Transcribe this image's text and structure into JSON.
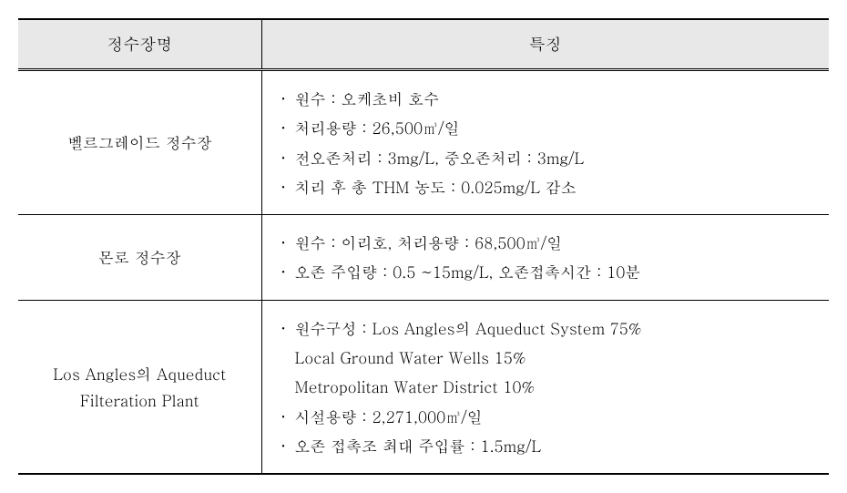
{
  "table": {
    "header_bg": "#e8e8e8",
    "border_color": "#000000",
    "columns": [
      {
        "label": "정수장명"
      },
      {
        "label": "특징"
      }
    ],
    "rows": [
      {
        "name_lines": [
          "벨르그레이드 정수장"
        ],
        "features": [
          {
            "bullet": true,
            "text": "원수 : 오케초비 호수"
          },
          {
            "bullet": true,
            "text": "처리용량 : 26,500㎥/일"
          },
          {
            "bullet": true,
            "text": "전오존처리 : 3mg/L, 중오존처리 : 3mg/L"
          },
          {
            "bullet": true,
            "text": "치리 후 총 THM 농도 : 0.025mg/L 감소"
          }
        ]
      },
      {
        "name_lines": [
          "몬로 정수장"
        ],
        "features": [
          {
            "bullet": true,
            "text": "원수 : 이리호, 처리용량 : 68,500㎥/일"
          },
          {
            "bullet": true,
            "text": "오존 주입량 : 0.5 ~15mg/L, 오존접촉시간 : 10분"
          }
        ]
      },
      {
        "name_lines": [
          "Los Angles의 Aqueduct",
          "Filteration Plant"
        ],
        "features": [
          {
            "bullet": true,
            "text": "원수구성 : Los Angles의 Aqueduct System 75%"
          },
          {
            "bullet": false,
            "text": "Local Ground Water Wells 15%"
          },
          {
            "bullet": false,
            "text": "Metropolitan Water District 10%"
          },
          {
            "bullet": true,
            "text": "시설용량 : 2,271,000㎥/일"
          },
          {
            "bullet": true,
            "text": "오존 접촉조 최대 주입률 : 1.5mg/L"
          }
        ]
      }
    ]
  }
}
